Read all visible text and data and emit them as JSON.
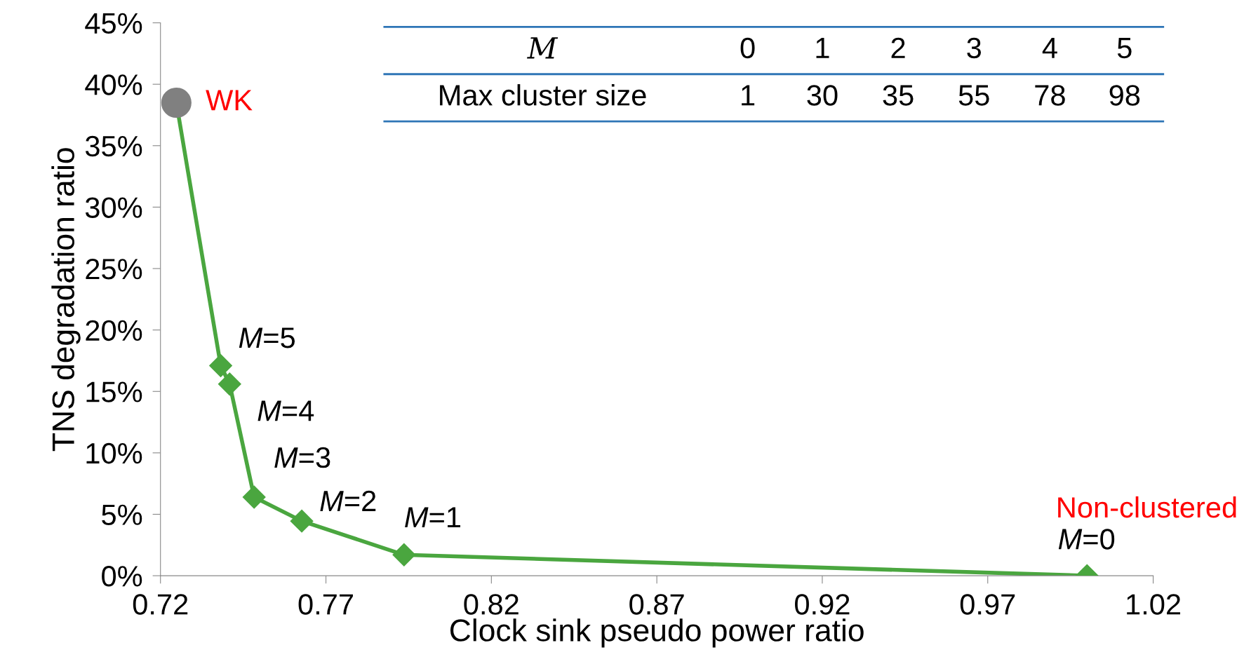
{
  "chart_data": {
    "type": "line",
    "xlabel": "Clock sink pseudo power ratio",
    "ylabel": "TNS degradation ratio",
    "x": [
      0.7248,
      0.7382,
      0.7409,
      0.7483,
      0.7627,
      0.7936,
      1.0
    ],
    "series": [
      {
        "color": "#4aa63f",
        "marker": "diamond",
        "values": [
          38.5,
          17.1,
          15.6,
          6.4,
          4.45,
          1.7,
          0.0
        ]
      },
      {
        "type": "scatter",
        "color": "#808080",
        "marker": "circle",
        "x": [
          0.7248
        ],
        "values": [
          38.5
        ]
      }
    ],
    "xlim": [
      0.72,
      1.02
    ],
    "xticks": [
      0.72,
      0.77,
      0.82,
      0.87,
      0.92,
      0.97,
      1.02
    ],
    "ylim": [
      0,
      45
    ],
    "yticks": [
      {
        "value": 0,
        "label": "0%"
      },
      {
        "value": 5,
        "label": "5%"
      },
      {
        "value": 10,
        "label": "10%"
      },
      {
        "value": 15,
        "label": "15%"
      },
      {
        "value": 20,
        "label": "20%"
      },
      {
        "value": 25,
        "label": "25%"
      },
      {
        "value": 30,
        "label": "30%"
      },
      {
        "value": 35,
        "label": "35%"
      },
      {
        "value": 40,
        "label": "40%"
      },
      {
        "value": 45,
        "label": "45%"
      }
    ],
    "grid": false,
    "legend": false,
    "annotations": [
      "M",
      "0",
      "1",
      "2",
      "3",
      "4",
      "5",
      "Max cluster size",
      "1",
      "30",
      "35",
      "55",
      "78",
      "98",
      "Non-clustered",
      {
        "text": "WK",
        "x": 0.7248,
        "y": 38.5
      },
      {
        "text": "M=5",
        "x": 0.7382,
        "y": 17.1
      },
      {
        "text": "M=4",
        "x": 0.7409,
        "y": 15.6
      },
      {
        "text": "M=3",
        "x": 0.7483,
        "y": 6.4
      },
      {
        "text": "M=2",
        "x": 0.7627,
        "y": 4.45
      },
      {
        "text": "M=1",
        "x": 0.7936,
        "y": 1.7
      },
      {
        "text": "M=0",
        "x": 1.0,
        "y": 0.0
      }
    ]
  }
}
